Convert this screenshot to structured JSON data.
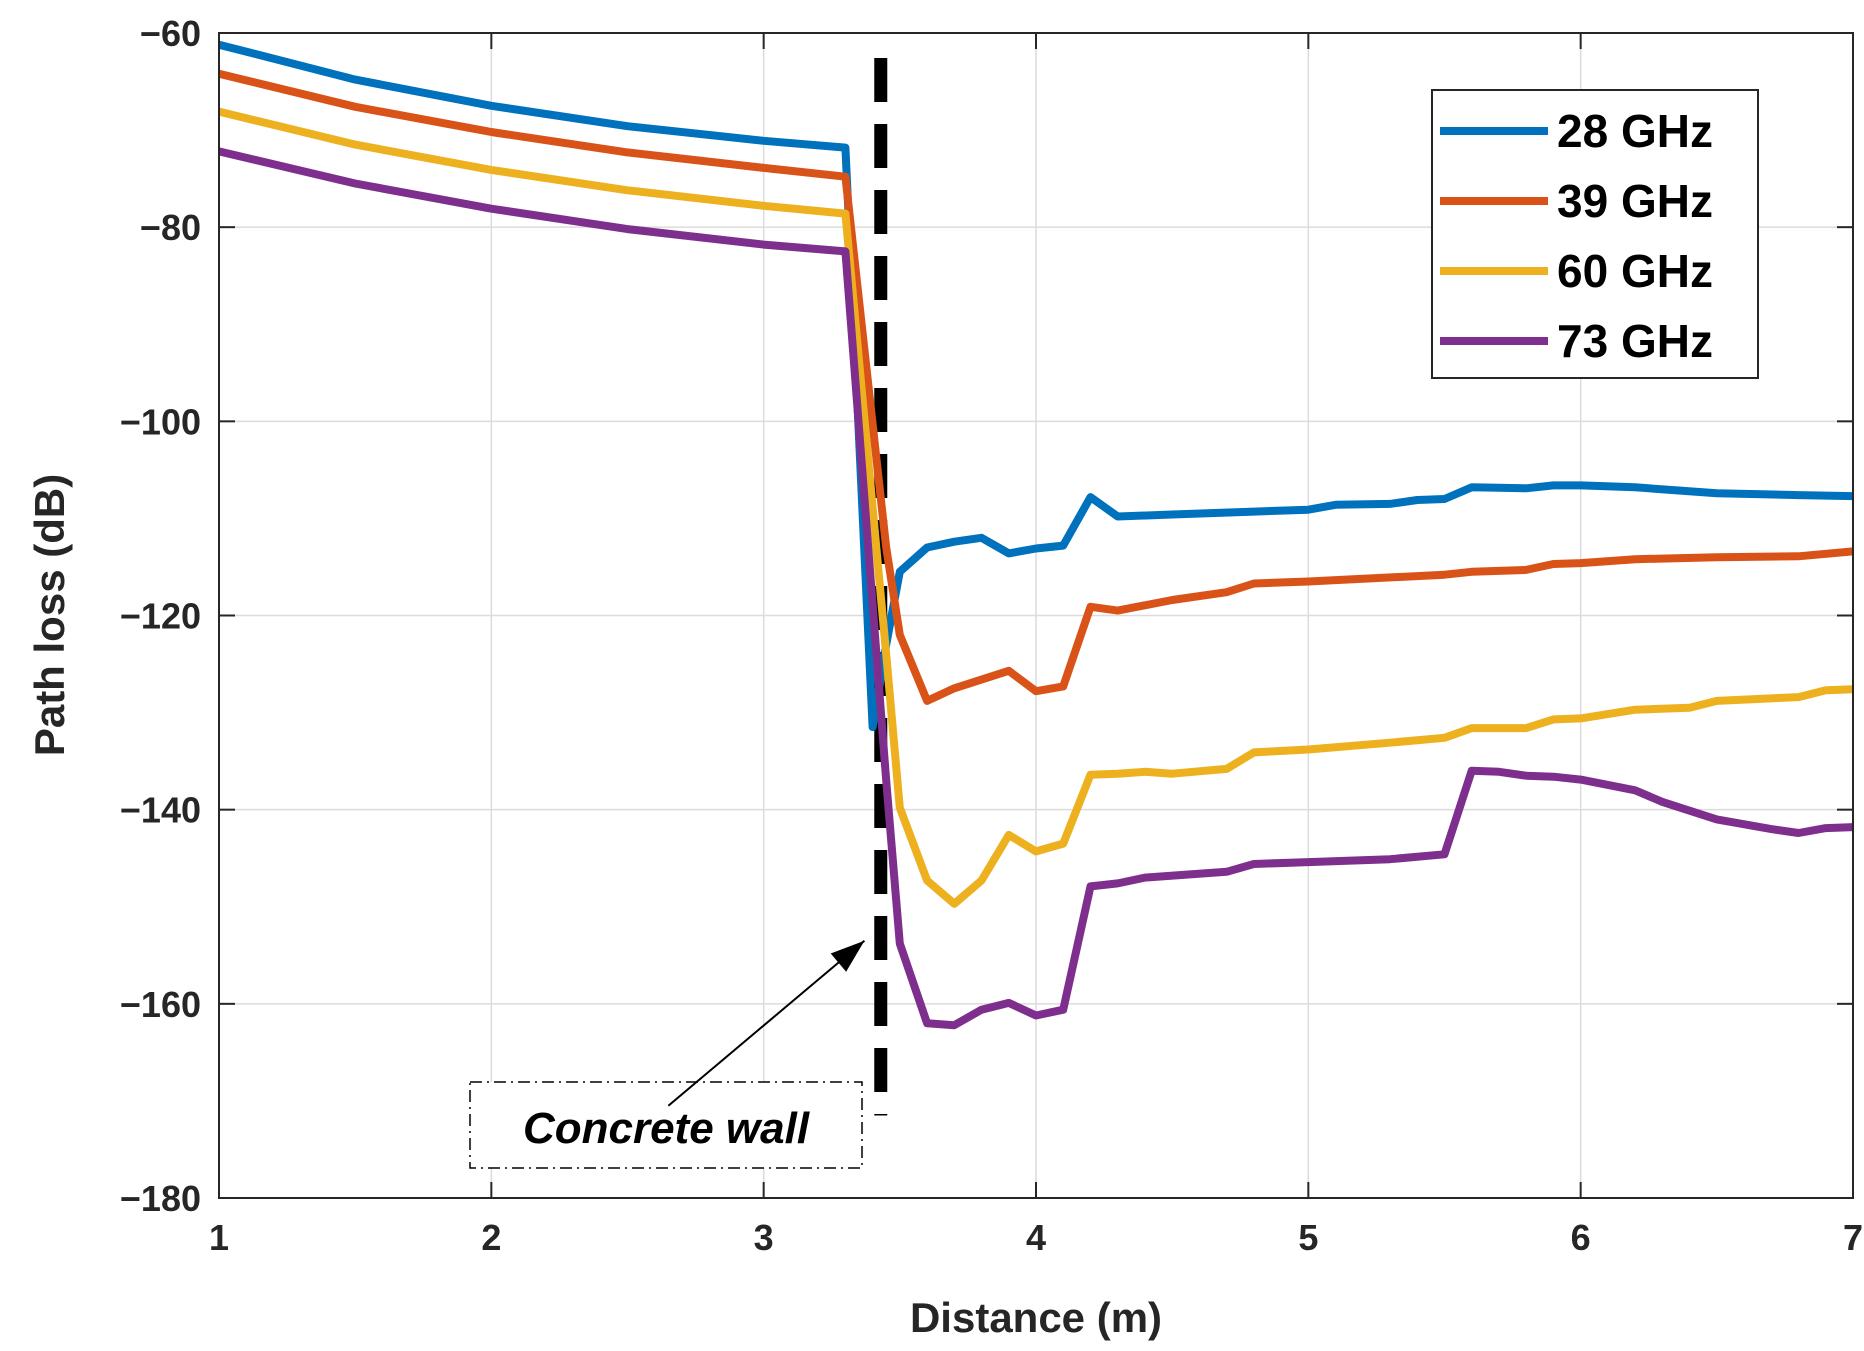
{
  "chart_data": {
    "type": "line",
    "xlabel": "Distance (m)",
    "ylabel": "Path loss (dB)",
    "xlim": [
      1,
      7
    ],
    "ylim": [
      -180,
      -60
    ],
    "xticks": [
      1,
      2,
      3,
      4,
      5,
      6,
      7
    ],
    "yticks": [
      -180,
      -160,
      -140,
      -120,
      -100,
      -80,
      -60
    ],
    "xtick_labels": [
      "1",
      "2",
      "3",
      "4",
      "5",
      "6",
      "7"
    ],
    "ytick_labels": [
      "−180",
      "−160",
      "−140",
      "−120",
      "−100",
      "−80",
      "−60"
    ],
    "grid": true,
    "legend_position": "top-right",
    "series": [
      {
        "name": "28 GHz",
        "color": "#0072BD",
        "x": [
          1,
          1.5,
          2,
          2.5,
          3,
          3.3,
          3.4,
          3.45,
          3.5,
          3.6,
          3.7,
          3.8,
          3.9,
          4,
          4.1,
          4.2,
          4.3,
          4.5,
          4.8,
          5,
          5.1,
          5.3,
          5.4,
          5.5,
          5.6,
          5.8,
          5.9,
          6,
          6.2,
          6.5,
          6.8,
          7
        ],
        "y": [
          -61.2,
          -64.8,
          -67.5,
          -69.6,
          -71.1,
          -71.8,
          -131.5,
          -123,
          -115.5,
          -113,
          -112.4,
          -112,
          -113.6,
          -113.1,
          -112.8,
          -107.8,
          -109.8,
          -109.6,
          -109.3,
          -109.1,
          -108.6,
          -108.5,
          -108.1,
          -108,
          -106.8,
          -106.9,
          -106.6,
          -106.6,
          -106.8,
          -107.4,
          -107.6,
          -107.7
        ]
      },
      {
        "name": "39 GHz",
        "color": "#D95319",
        "x": [
          1,
          1.5,
          2,
          2.5,
          3,
          3.3,
          3.45,
          3.5,
          3.6,
          3.7,
          3.8,
          3.9,
          4,
          4.1,
          4.2,
          4.3,
          4.5,
          4.7,
          4.8,
          5,
          5.5,
          5.6,
          5.8,
          5.9,
          6,
          6.2,
          6.5,
          6.8,
          7
        ],
        "y": [
          -64.2,
          -67.6,
          -70.2,
          -72.3,
          -73.9,
          -74.8,
          -113,
          -122,
          -128.8,
          -127.5,
          -126.6,
          -125.7,
          -127.8,
          -127.3,
          -119.1,
          -119.5,
          -118.4,
          -117.6,
          -116.7,
          -116.5,
          -115.8,
          -115.5,
          -115.3,
          -114.7,
          -114.6,
          -114.2,
          -114,
          -113.9,
          -113.4
        ]
      },
      {
        "name": "60 GHz",
        "color": "#EDB120",
        "x": [
          1,
          1.5,
          2,
          2.5,
          3,
          3.3,
          3.45,
          3.5,
          3.6,
          3.7,
          3.8,
          3.9,
          4,
          4.1,
          4.2,
          4.3,
          4.4,
          4.5,
          4.7,
          4.8,
          5,
          5.3,
          5.5,
          5.6,
          5.8,
          5.9,
          6,
          6.2,
          6.4,
          6.5,
          6.8,
          6.9,
          7
        ],
        "y": [
          -68.1,
          -71.5,
          -74.1,
          -76.2,
          -77.8,
          -78.6,
          -124,
          -139.8,
          -147.3,
          -149.7,
          -147.3,
          -142.6,
          -144.3,
          -143.5,
          -136.4,
          -136.3,
          -136.1,
          -136.3,
          -135.8,
          -134.1,
          -133.8,
          -133.1,
          -132.6,
          -131.6,
          -131.6,
          -130.7,
          -130.6,
          -129.7,
          -129.5,
          -128.8,
          -128.4,
          -127.7,
          -127.6
        ]
      },
      {
        "name": "73 GHz",
        "color": "#7E2F8E",
        "x": [
          1,
          1.5,
          2,
          2.5,
          3,
          3.3,
          3.45,
          3.5,
          3.6,
          3.7,
          3.8,
          3.9,
          4,
          4.1,
          4.2,
          4.3,
          4.4,
          4.7,
          4.8,
          5,
          5.3,
          5.5,
          5.6,
          5.7,
          5.8,
          5.9,
          6,
          6.2,
          6.3,
          6.5,
          6.7,
          6.8,
          6.9,
          7
        ],
        "y": [
          -72.2,
          -75.5,
          -78.1,
          -80.2,
          -81.8,
          -82.5,
          -137,
          -153.8,
          -162,
          -162.2,
          -160.6,
          -159.9,
          -161.2,
          -160.6,
          -147.9,
          -147.6,
          -147,
          -146.4,
          -145.6,
          -145.4,
          -145.1,
          -144.6,
          -136,
          -136.1,
          -136.5,
          -136.6,
          -136.9,
          -138,
          -139.2,
          -141,
          -142,
          -142.4,
          -141.9,
          -141.8
        ]
      }
    ],
    "wall": {
      "x": 3.43
    },
    "annotation": {
      "text": "Concrete wall",
      "arrow_to": {
        "x": 3.37,
        "y": -153.5
      },
      "arrow_from": {
        "x": 2.65,
        "y": -170.5
      }
    }
  }
}
